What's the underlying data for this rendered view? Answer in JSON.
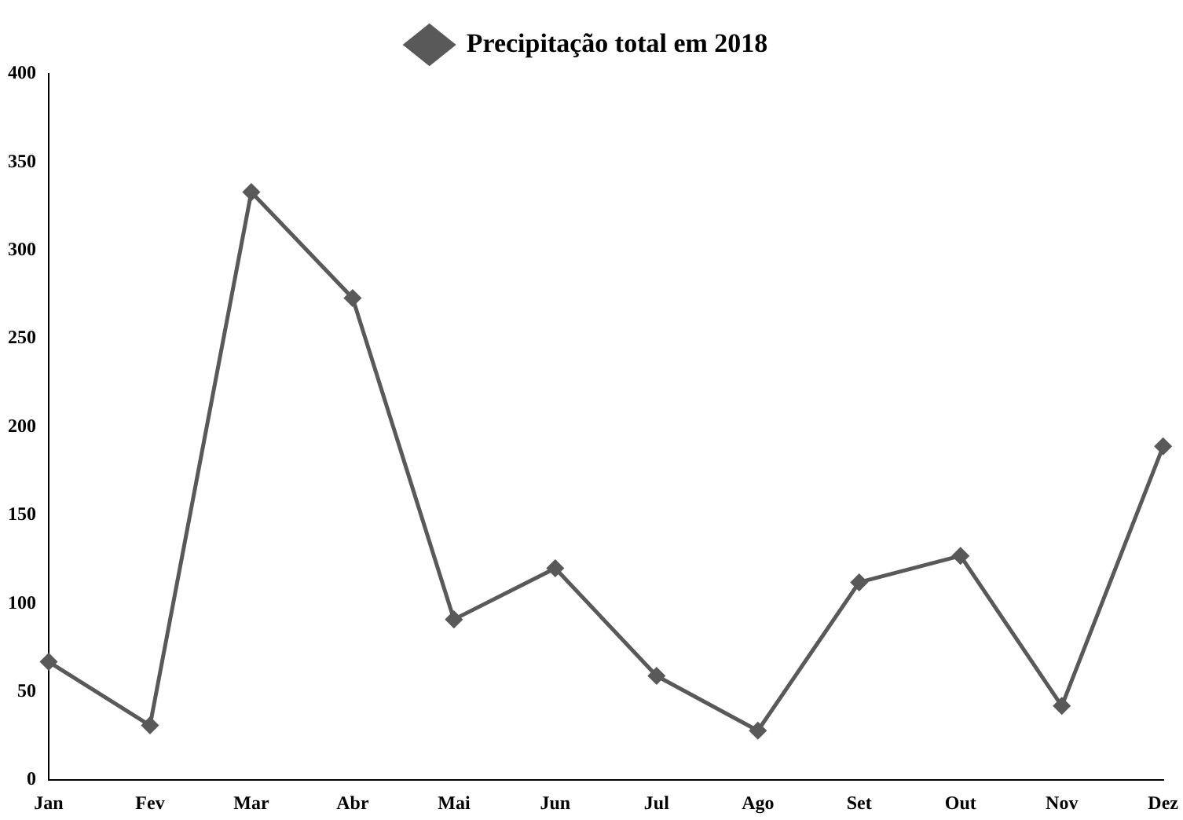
{
  "chart_data": {
    "type": "line",
    "categories": [
      "Jan",
      "Fev",
      "Mar",
      "Abr",
      "Mai",
      "Jun",
      "Jul",
      "Ago",
      "Set",
      "Out",
      "Nov",
      "Dez"
    ],
    "series": [
      {
        "name": "Precipitação total em 2018",
        "color": "#595959",
        "values": [
          67,
          31,
          333,
          273,
          91,
          120,
          59,
          28,
          112,
          127,
          42,
          189
        ]
      }
    ],
    "ylim": [
      0,
      400
    ],
    "yticks": [
      0,
      50,
      100,
      150,
      200,
      250,
      300,
      350,
      400
    ],
    "grid": false,
    "legend": "top",
    "marker": "diamond",
    "line_style": "solid"
  }
}
